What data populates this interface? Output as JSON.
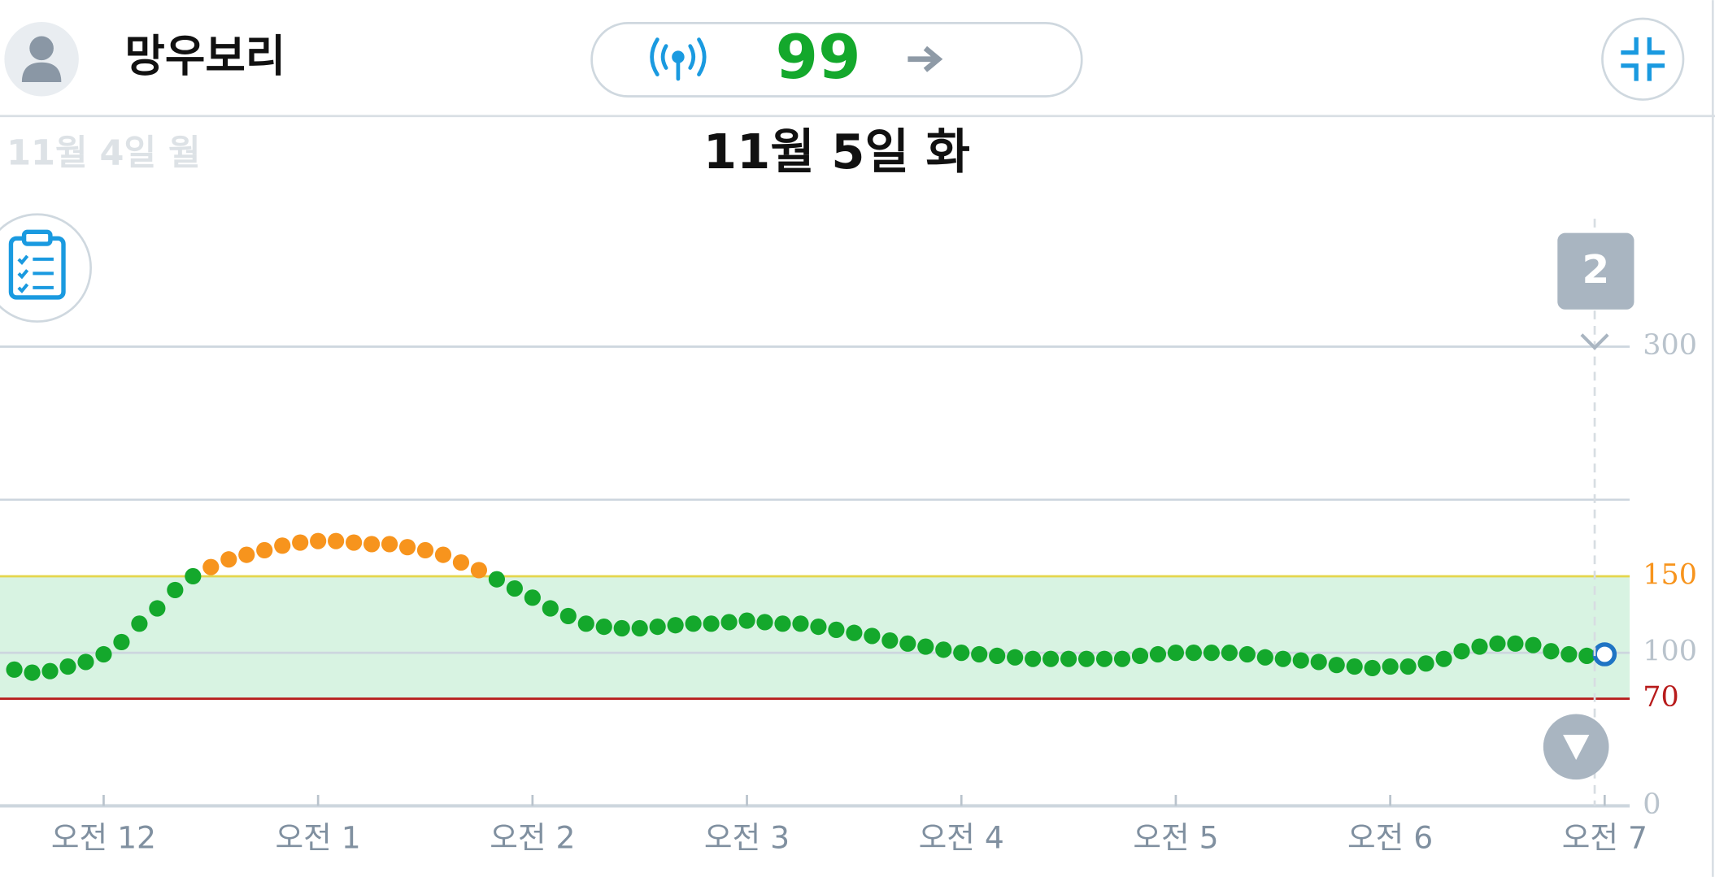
{
  "header": {
    "name": "망우보리",
    "current_value": 99
  },
  "dates": {
    "previous": "11월 4일 월",
    "current": "11월 5일 화"
  },
  "badge": "2",
  "chart_data": {
    "type": "scatter",
    "x": [
      -25,
      -20,
      -15,
      -10,
      -5,
      0,
      5,
      10,
      15,
      20,
      25,
      30,
      35,
      40,
      45,
      50,
      55,
      60,
      65,
      70,
      75,
      80,
      85,
      90,
      95,
      100,
      105,
      110,
      115,
      120,
      125,
      130,
      135,
      140,
      145,
      150,
      155,
      160,
      165,
      170,
      175,
      180,
      185,
      190,
      195,
      200,
      205,
      210,
      215,
      220,
      225,
      230,
      235,
      240,
      245,
      250,
      255,
      260,
      265,
      270,
      275,
      280,
      285,
      290,
      295,
      300,
      305,
      310,
      315,
      320,
      325,
      330,
      335,
      340,
      345,
      350,
      355,
      360,
      365,
      370,
      375,
      380,
      385,
      390,
      395,
      400,
      405,
      410,
      415,
      420
    ],
    "values": [
      89,
      87,
      88,
      91,
      94,
      99,
      107,
      119,
      129,
      141,
      150,
      156,
      161,
      164,
      167,
      170,
      172,
      173,
      173,
      172,
      171,
      171,
      169,
      167,
      164,
      159,
      154,
      148,
      142,
      136,
      129,
      124,
      119,
      117,
      116,
      116,
      117,
      118,
      119,
      119,
      120,
      121,
      120,
      119,
      119,
      117,
      115,
      113,
      111,
      108,
      106,
      104,
      102,
      100,
      99,
      98,
      97,
      96,
      96,
      96,
      96,
      96,
      96,
      98,
      99,
      100,
      100,
      100,
      100,
      99,
      97,
      96,
      95,
      94,
      92,
      91,
      90,
      91,
      91,
      93,
      96,
      101,
      104,
      106,
      106,
      105,
      101,
      99,
      98,
      99
    ],
    "color": "#14a82c",
    "high_color": "#f7941d",
    "low_color": "#b81c1c",
    "current_color": "#1f74c4",
    "target_range": {
      "low": 70,
      "high": 150
    },
    "xlim": [
      -29,
      427
    ],
    "ylim": [
      0,
      300
    ],
    "xticks": [
      {
        "value": 0,
        "label": "오전 12"
      },
      {
        "value": 60,
        "label": "오전 1"
      },
      {
        "value": 120,
        "label": "오전 2"
      },
      {
        "value": 180,
        "label": "오전 3"
      },
      {
        "value": 240,
        "label": "오전 4"
      },
      {
        "value": 300,
        "label": "오전 5"
      },
      {
        "value": 360,
        "label": "오전 6"
      },
      {
        "value": 420,
        "label": "오전 7"
      }
    ],
    "yticks": [
      0,
      70,
      100,
      150,
      {
        "value": 200,
        "label": null
      },
      300
    ],
    "grid": true
  }
}
